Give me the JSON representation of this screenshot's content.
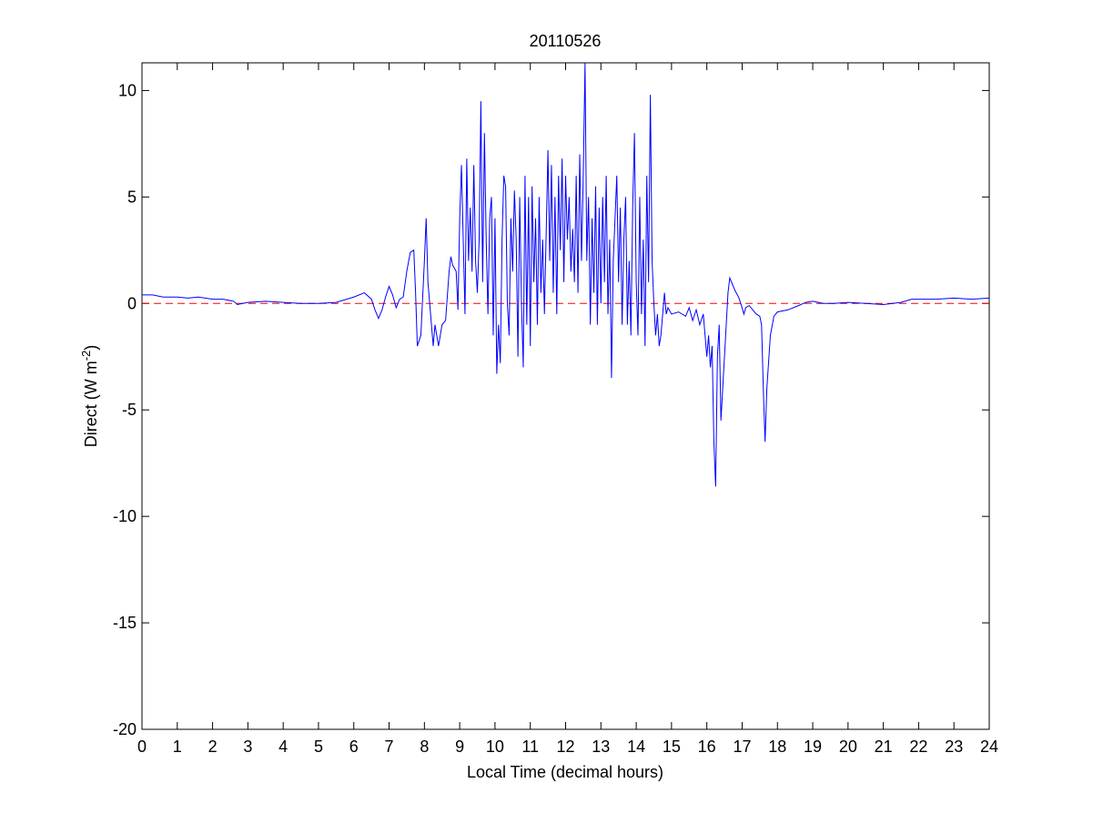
{
  "chart_data": {
    "type": "line",
    "title": "20110526",
    "xlabel": "Local Time (decimal hours)",
    "ylabel": {
      "text": "Direct (W m",
      "sup": "-2",
      "tail": ")"
    },
    "xlim": [
      0,
      24
    ],
    "ylim": [
      -20,
      11.3
    ],
    "xticks": [
      0,
      1,
      2,
      3,
      4,
      5,
      6,
      7,
      8,
      9,
      10,
      11,
      12,
      13,
      14,
      15,
      16,
      17,
      18,
      19,
      20,
      21,
      22,
      23,
      24
    ],
    "yticks": [
      -20,
      -15,
      -10,
      -5,
      0,
      5,
      10
    ],
    "reference_line": {
      "value": 0,
      "color": "#ff0000"
    },
    "series": [
      {
        "color": "#0000ff",
        "x": [
          0,
          0.3,
          0.6,
          1,
          1.3,
          1.6,
          2,
          2.3,
          2.6,
          2.7,
          3,
          3.5,
          4,
          4.5,
          5,
          5.5,
          5.8,
          6,
          6.3,
          6.5,
          6.6,
          6.7,
          6.8,
          6.9,
          7.0,
          7.1,
          7.2,
          7.3,
          7.4,
          7.5,
          7.6,
          7.7,
          7.75,
          7.8,
          7.9,
          8.0,
          8.05,
          8.1,
          8.2,
          8.25,
          8.3,
          8.4,
          8.5,
          8.6,
          8.7,
          8.75,
          8.8,
          8.9,
          8.95,
          9.0,
          9.05,
          9.1,
          9.15,
          9.2,
          9.25,
          9.3,
          9.35,
          9.4,
          9.45,
          9.5,
          9.55,
          9.6,
          9.65,
          9.7,
          9.75,
          9.8,
          9.85,
          9.9,
          9.95,
          10.0,
          10.05,
          10.1,
          10.15,
          10.2,
          10.25,
          10.3,
          10.35,
          10.4,
          10.45,
          10.5,
          10.55,
          10.6,
          10.65,
          10.7,
          10.75,
          10.8,
          10.85,
          10.9,
          10.95,
          11.0,
          11.05,
          11.1,
          11.15,
          11.2,
          11.25,
          11.3,
          11.35,
          11.4,
          11.5,
          11.55,
          11.6,
          11.65,
          11.7,
          11.75,
          11.8,
          11.85,
          11.9,
          11.95,
          12.0,
          12.05,
          12.1,
          12.15,
          12.2,
          12.25,
          12.3,
          12.35,
          12.4,
          12.45,
          12.5,
          12.55,
          12.6,
          12.65,
          12.7,
          12.75,
          12.8,
          12.85,
          12.9,
          12.95,
          13.0,
          13.05,
          13.1,
          13.15,
          13.2,
          13.25,
          13.3,
          13.35,
          13.4,
          13.45,
          13.5,
          13.55,
          13.6,
          13.65,
          13.7,
          13.75,
          13.8,
          13.85,
          13.9,
          13.95,
          14.0,
          14.05,
          14.1,
          14.15,
          14.2,
          14.25,
          14.3,
          14.35,
          14.4,
          14.45,
          14.5,
          14.55,
          14.6,
          14.65,
          14.7,
          14.75,
          14.8,
          14.85,
          14.9,
          15.0,
          15.2,
          15.4,
          15.5,
          15.6,
          15.7,
          15.8,
          15.9,
          16.0,
          16.05,
          16.1,
          16.15,
          16.2,
          16.25,
          16.3,
          16.35,
          16.4,
          16.45,
          16.5,
          16.55,
          16.6,
          16.65,
          16.7,
          16.8,
          16.9,
          17.0,
          17.05,
          17.1,
          17.2,
          17.3,
          17.4,
          17.5,
          17.55,
          17.6,
          17.65,
          17.7,
          17.8,
          17.9,
          18.0,
          18.3,
          18.6,
          18.8,
          19.0,
          19.3,
          19.6,
          20,
          20.5,
          21,
          21.5,
          21.8,
          22,
          22.5,
          23,
          23.5,
          24
        ],
        "values": [
          0.4,
          0.4,
          0.3,
          0.3,
          0.25,
          0.3,
          0.2,
          0.2,
          0.1,
          -0.05,
          0.05,
          0.1,
          0.05,
          0,
          0,
          0.05,
          0.2,
          0.3,
          0.5,
          0.2,
          -0.3,
          -0.7,
          -0.3,
          0.3,
          0.8,
          0.4,
          -0.2,
          0.2,
          0.3,
          1.5,
          2.4,
          2.5,
          0.5,
          -2.0,
          -1.5,
          2.0,
          4.0,
          1.0,
          -1.0,
          -2.0,
          -1.0,
          -2.0,
          -1.0,
          -0.8,
          1.5,
          2.2,
          1.8,
          1.5,
          -0.3,
          4.0,
          6.5,
          3.0,
          -0.5,
          6.8,
          2.0,
          4.5,
          1.5,
          6.5,
          2.0,
          0.5,
          3.0,
          9.5,
          1.0,
          8.0,
          3.0,
          -0.5,
          4.0,
          5.0,
          -1.5,
          4.0,
          -3.3,
          -1.0,
          -2.8,
          3.0,
          6.0,
          5.5,
          0,
          -1.5,
          4.0,
          1.5,
          5.3,
          3.0,
          -2.5,
          5.0,
          0,
          -3.0,
          6.0,
          -1.0,
          5.0,
          -2.0,
          5.5,
          1.0,
          4.0,
          -1.0,
          5.0,
          0.5,
          3.0,
          -0.5,
          7.2,
          2.0,
          6.5,
          0.5,
          5.0,
          -0.5,
          6.0,
          2.5,
          6.8,
          1.0,
          6.0,
          3.0,
          5.0,
          1.5,
          3.5,
          1.0,
          6.0,
          0.5,
          7.0,
          2.0,
          6.0,
          11.3,
          2.0,
          5.0,
          -1.0,
          4.0,
          0.5,
          5.5,
          -1.0,
          4.5,
          0,
          5.0,
          1.0,
          6.0,
          -0.5,
          3.0,
          -3.5,
          2.0,
          4.0,
          6.0,
          1.0,
          4.5,
          -1.0,
          3.0,
          5.0,
          -1.0,
          2.0,
          -1.5,
          4.5,
          8.0,
          1.0,
          -1.5,
          5.0,
          -0.5,
          3.0,
          -2.0,
          6.0,
          1.0,
          9.8,
          2.0,
          0,
          -1.5,
          -0.5,
          -2.0,
          -1.5,
          -0.5,
          0.5,
          -0.5,
          -0.2,
          -0.5,
          -0.4,
          -0.6,
          -0.2,
          -0.8,
          -0.3,
          -1.0,
          -0.5,
          -2.5,
          -1.5,
          -3.0,
          -2.0,
          -6.5,
          -8.6,
          -2.5,
          -1.0,
          -5.5,
          -4.0,
          -2.5,
          -1.0,
          0.5,
          1.2,
          1.0,
          0.6,
          0.3,
          -0.2,
          -0.5,
          -0.2,
          -0.1,
          -0.3,
          -0.5,
          -0.6,
          -1.0,
          -4.0,
          -6.5,
          -4.0,
          -1.5,
          -0.6,
          -0.4,
          -0.3,
          -0.1,
          0.05,
          0.1,
          0,
          0,
          0.05,
          0,
          -0.05,
          0.05,
          0.2,
          0.2,
          0.2,
          0.25,
          0.2,
          0.25
        ]
      }
    ]
  }
}
